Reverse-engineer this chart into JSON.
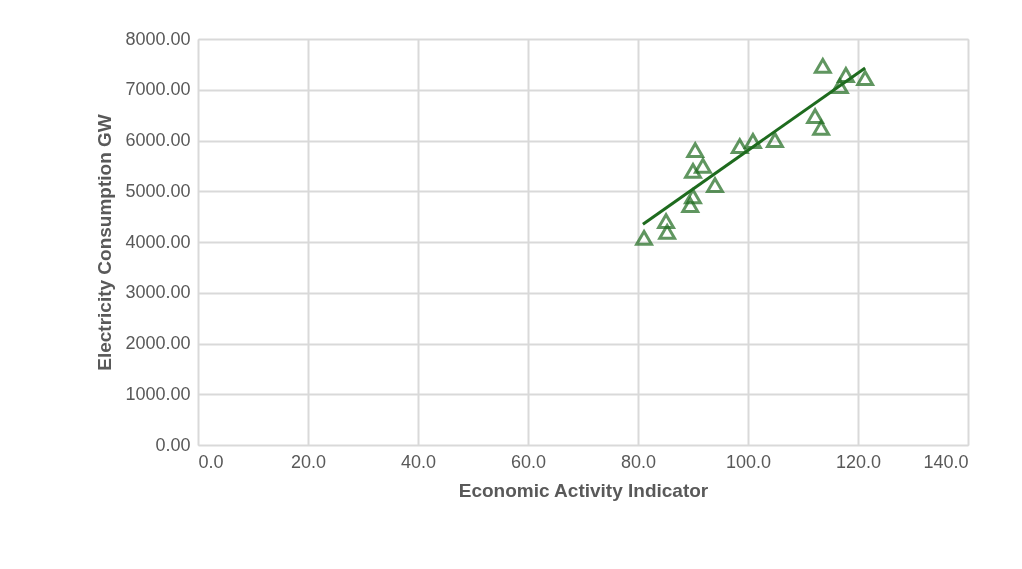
{
  "chart_data": {
    "type": "scatter",
    "xlabel": "Economic Activity Indicator",
    "ylabel": "Electricity Consumption GW",
    "xlim": [
      0,
      140
    ],
    "xticks": [
      {
        "value": 0,
        "label": "0.0"
      },
      {
        "value": 20,
        "label": "20.0"
      },
      {
        "value": 40,
        "label": "40.0"
      },
      {
        "value": 60,
        "label": "60.0"
      },
      {
        "value": 80,
        "label": "80.0"
      },
      {
        "value": 100,
        "label": "100.0"
      },
      {
        "value": 120,
        "label": "120.0"
      },
      {
        "value": 140,
        "label": "140.0"
      }
    ],
    "ylim": [
      0,
      8000
    ],
    "yticks": [
      {
        "value": 0,
        "label": "0.00"
      },
      {
        "value": 1000,
        "label": "1000.00"
      },
      {
        "value": 2000,
        "label": "2000.00"
      },
      {
        "value": 3000,
        "label": "3000.00"
      },
      {
        "value": 4000,
        "label": "4000.00"
      },
      {
        "value": 5000,
        "label": "5000.00"
      },
      {
        "value": 6000,
        "label": "6000.00"
      },
      {
        "value": 7000,
        "label": "7000.00"
      },
      {
        "value": 8000,
        "label": "8000.00"
      }
    ],
    "grid": true,
    "marker": "triangle",
    "series": [
      {
        "color": "#1e6b1e",
        "x": [
          81.1,
          85.1,
          85.3,
          89.5,
          90.0,
          90.4,
          90.0,
          91.8,
          94.0,
          98.5,
          100.9,
          104.9,
          112.2,
          113.3,
          113.6,
          116.7,
          117.8,
          121.3
        ],
        "values": [
          4080,
          4410,
          4200,
          4730,
          4900,
          5810,
          5400,
          5500,
          5120,
          5890,
          5990,
          6010,
          6480,
          6250,
          7470,
          7070,
          7290,
          7230
        ]
      },
      {
        "type": "line",
        "marker": "none",
        "line_style": "solid",
        "color": "#1e6b1e",
        "x": [
          80.9,
          121.3
        ],
        "values": [
          4350,
          7430
        ]
      }
    ]
  }
}
